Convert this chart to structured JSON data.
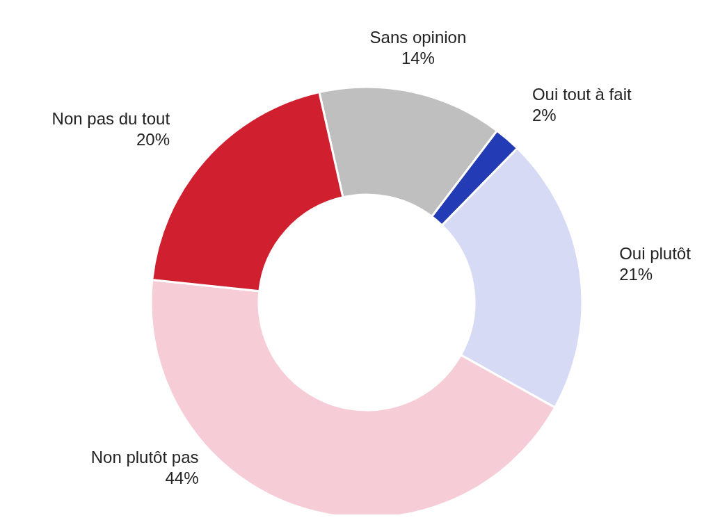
{
  "chart_data": {
    "type": "donut",
    "categories": [
      "Sans opinion",
      "Oui tout à fait",
      "Oui plutôt",
      "Non plutôt pas",
      "Non pas du tout"
    ],
    "values": [
      14,
      2,
      21,
      44,
      20
    ],
    "value_labels": [
      "14%",
      "2%",
      "21%",
      "44%",
      "20%"
    ],
    "colors": [
      "#bfbfbf",
      "#233bb5",
      "#d6daf5",
      "#f6cdd7",
      "#d02030"
    ],
    "legend": false
  }
}
